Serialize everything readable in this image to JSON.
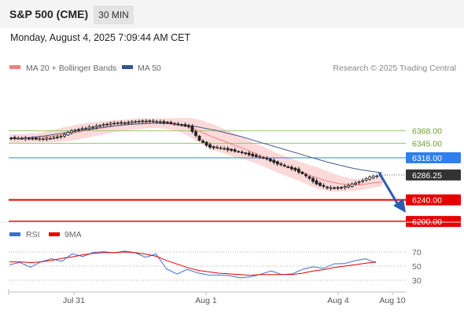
{
  "header": {
    "instrument": "S&P 500 (CME)",
    "timeframe": "30 MIN",
    "datetime": "Monday, August 4, 2025 7:09:44 AM CET"
  },
  "legend": {
    "ma20": "MA 20 + Bollinger Bands",
    "ma50": "MA 50",
    "credit": "Research © 2025 Trading Central",
    "rsi": "RSI",
    "ma9": "9MA"
  },
  "colors": {
    "ma20": "#f08080",
    "bollinger_fill": "#fbd3d3",
    "ma50": "#4a5a8a",
    "support": "#e60000",
    "resistance": "#9bc56a",
    "pivot": "#2f80ed",
    "last_price_tag": "#333333",
    "rsi": "#3b6fd6",
    "rsi_ma": "#e60000",
    "arrow": "#2a5db0"
  },
  "chart_data": [
    {
      "type": "line",
      "title": "S&P 500 (CME)",
      "y_range": [
        6195,
        6395
      ],
      "x_ticks": [
        "Jul 31",
        "Aug 1",
        "Aug 4",
        "Aug 10"
      ],
      "price_levels": [
        {
          "label": "6368.00",
          "value": 6368,
          "kind": "resistance"
        },
        {
          "label": "6345.00",
          "value": 6345,
          "kind": "resistance"
        },
        {
          "label": "6318.00",
          "value": 6318,
          "kind": "pivot"
        },
        {
          "label": "6240.00",
          "value": 6240,
          "kind": "support"
        },
        {
          "label": "6200.00",
          "value": 6200,
          "kind": "support"
        }
      ],
      "last_price": {
        "label": "6286.25",
        "value": 6286.25
      },
      "series": [
        {
          "name": "MA 50",
          "values": [
            6353,
            6354,
            6356,
            6358,
            6361,
            6364,
            6367,
            6370,
            6373,
            6376,
            6378,
            6380,
            6381,
            6382,
            6382,
            6381,
            6379,
            6376,
            6372,
            6368,
            6363,
            6358,
            6352,
            6346,
            6340,
            6334,
            6328,
            6322,
            6316,
            6310,
            6305,
            6300,
            6296,
            6293,
            6290
          ]
        }
      ],
      "close": [
        6355,
        6354,
        6354,
        6353,
        6354,
        6358,
        6368,
        6372,
        6375,
        6380,
        6382,
        6383,
        6385,
        6386,
        6385,
        6383,
        6380,
        6376,
        6350,
        6338,
        6336,
        6332,
        6328,
        6322,
        6318,
        6310,
        6302,
        6296,
        6284,
        6270,
        6262,
        6262,
        6266,
        6274,
        6282,
        6286
      ],
      "ma20": [
        6354,
        6354,
        6355,
        6356,
        6358,
        6361,
        6364,
        6368,
        6371,
        6374,
        6377,
        6379,
        6381,
        6382,
        6382,
        6381,
        6379,
        6374,
        6366,
        6357,
        6350,
        6342,
        6335,
        6327,
        6319,
        6310,
        6302,
        6295,
        6287,
        6280,
        6274,
        6270,
        6268,
        6268,
        6271,
        6273
      ],
      "boll_width": [
        8,
        8,
        8,
        9,
        11,
        13,
        14,
        14,
        13,
        12,
        11,
        10,
        10,
        9,
        9,
        10,
        13,
        18,
        22,
        24,
        23,
        22,
        20,
        18,
        18,
        18,
        18,
        18,
        19,
        20,
        18,
        15,
        12,
        10,
        9,
        8
      ]
    },
    {
      "type": "line",
      "title": "RSI",
      "y_range": [
        25,
        75
      ],
      "y_ticks": [
        70,
        50,
        30
      ],
      "series": [
        {
          "name": "RSI",
          "values": [
            52,
            54,
            50,
            55,
            60,
            58,
            66,
            64,
            70,
            69,
            70,
            71,
            68,
            64,
            66,
            46,
            40,
            44,
            41,
            38,
            36,
            38,
            33,
            34,
            40,
            42,
            38,
            40,
            44,
            50,
            47,
            52,
            55,
            57,
            60,
            56
          ]
        },
        {
          "name": "9MA",
          "values": [
            56,
            56,
            55,
            56,
            58,
            61,
            63,
            66,
            68,
            69,
            69,
            70,
            69,
            67,
            64,
            58,
            53,
            48,
            44,
            42,
            40,
            39,
            38,
            37,
            38,
            38,
            38,
            38,
            40,
            43,
            45,
            48,
            50,
            52,
            54,
            56
          ]
        }
      ]
    }
  ]
}
